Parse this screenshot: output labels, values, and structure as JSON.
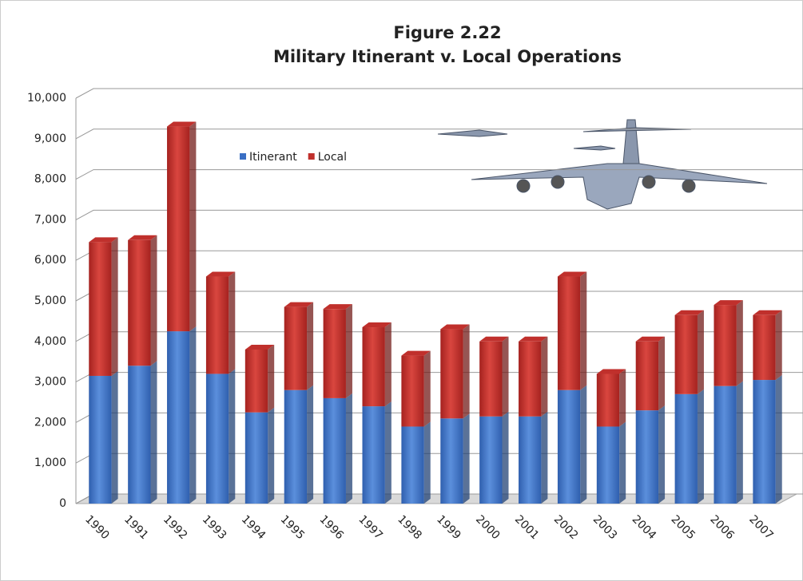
{
  "chart_data": {
    "type": "bar3d-stacked",
    "title": "Figure 2.22",
    "subtitle": "Military Itinerant v. Local Operations",
    "categories": [
      "1990",
      "1991",
      "1992",
      "1993",
      "1994",
      "1995",
      "1996",
      "1997",
      "1998",
      "1999",
      "2000",
      "2001",
      "2002",
      "2003",
      "2004",
      "2005",
      "2006",
      "2007"
    ],
    "series": [
      {
        "name": "Itinerant",
        "color": "#3a6fc4",
        "values": [
          3150,
          3400,
          4250,
          3200,
          2250,
          2800,
          2600,
          2400,
          1900,
          2100,
          2150,
          2150,
          2800,
          1900,
          2300,
          2700,
          2900,
          3050
        ]
      },
      {
        "name": "Local",
        "color": "#c0302c",
        "values": [
          3300,
          3100,
          5050,
          2400,
          1550,
          2050,
          2200,
          1950,
          1750,
          2200,
          1850,
          1850,
          2800,
          1300,
          1700,
          1950,
          2000,
          1600
        ]
      }
    ],
    "ylim": [
      0,
      10000
    ],
    "yticks": [
      0,
      {
        "value": 1000,
        "label": "1,000"
      },
      {
        "value": 2000,
        "label": "2,000"
      },
      {
        "value": 3000,
        "label": "3,000"
      },
      {
        "value": 4000,
        "label": "4,000"
      },
      {
        "value": 5000,
        "label": "5,000"
      },
      {
        "value": 6000,
        "label": "6,000"
      },
      {
        "value": 7000,
        "label": "7,000"
      },
      {
        "value": 8000,
        "label": "8,000"
      },
      {
        "value": 9000,
        "label": "9,000"
      },
      {
        "value": 10000,
        "label": "10,000"
      }
    ],
    "grid": true
  }
}
